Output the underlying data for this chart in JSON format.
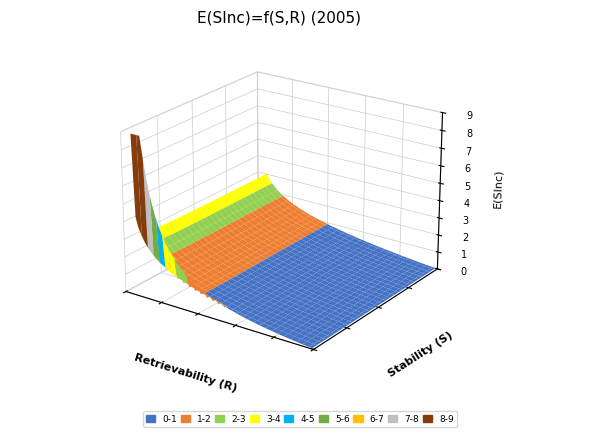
{
  "title": "E(SInc)=f(S,R) (2005)",
  "xlabel": "Retrievability (R)",
  "ylabel": "Stability (S)",
  "zlabel": "E(SInc)",
  "zlim": [
    0,
    9
  ],
  "legend_labels": [
    "0-1",
    "1-2",
    "2-3",
    "3-4",
    "4-5",
    "5-6",
    "6-7",
    "7-8",
    "8-9"
  ],
  "band_colors": [
    "#4472C4",
    "#ED7D31",
    "#92D050",
    "#FFFF00",
    "#00B0F0",
    "#70AD47",
    "#FFC000",
    "#BFBFBF",
    "#843C0C"
  ],
  "background_color": "#FFFFFF",
  "R_range": [
    0.05,
    0.99
  ],
  "S_range": [
    1.0,
    200.0
  ],
  "elev": 22,
  "azim": -55,
  "R_npts": 60,
  "S_npts": 60
}
